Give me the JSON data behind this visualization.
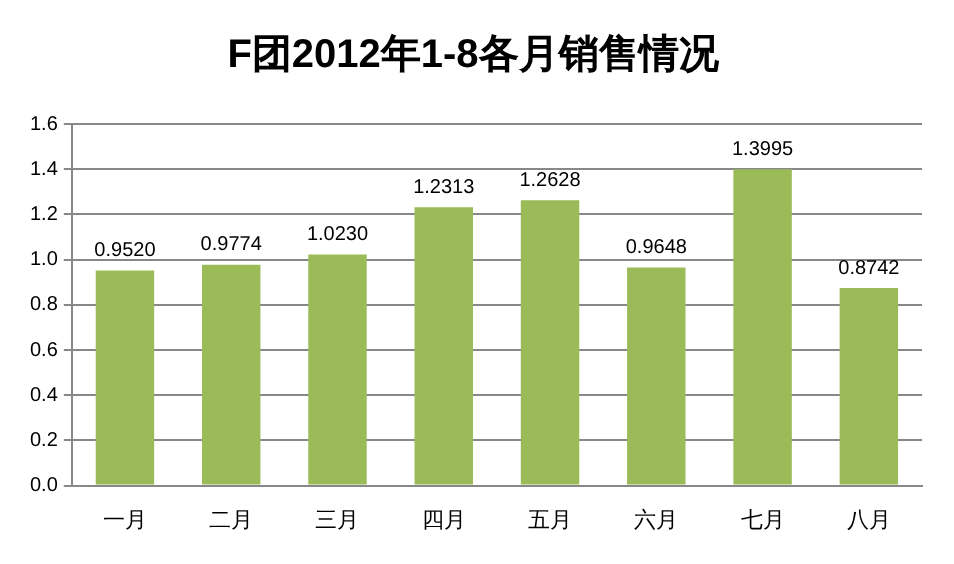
{
  "chart_data": {
    "type": "bar",
    "title": "F团2012年1-8各月销售情况",
    "categories": [
      "一月",
      "二月",
      "三月",
      "四月",
      "五月",
      "六月",
      "七月",
      "八月"
    ],
    "values": [
      0.952,
      0.9774,
      1.023,
      1.2313,
      1.2628,
      0.9648,
      1.3995,
      0.8742
    ],
    "value_labels": [
      "0.9520",
      "0.9774",
      "1.0230",
      "1.2313",
      "1.2628",
      "0.9648",
      "1.3995",
      "0.8742"
    ],
    "color": "#9bbb59",
    "ylim": [
      0,
      1.6
    ],
    "yticks": [
      {
        "value": 0,
        "label": "0.0"
      },
      {
        "value": 0.2,
        "label": "0.2"
      },
      {
        "value": 0.4,
        "label": "0.4"
      },
      {
        "value": 0.6,
        "label": "0.6"
      },
      {
        "value": 0.8,
        "label": "0.8"
      },
      {
        "value": 1,
        "label": "1.0"
      },
      {
        "value": 1.2,
        "label": "1.2"
      },
      {
        "value": 1.4,
        "label": "1.4"
      },
      {
        "value": 1.6,
        "label": "1.6"
      }
    ],
    "grid": "y",
    "legend": false
  }
}
